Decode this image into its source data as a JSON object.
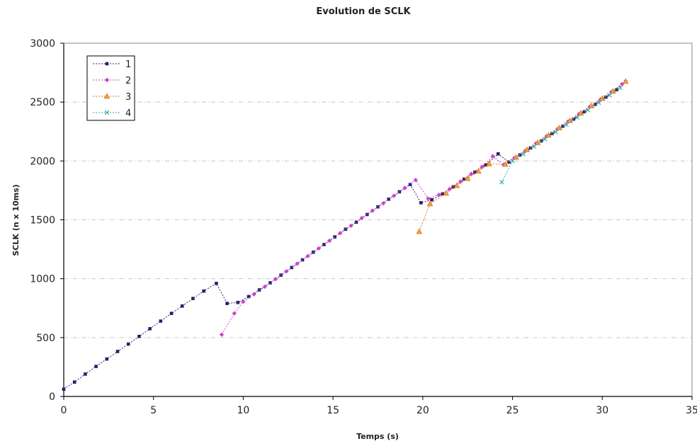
{
  "chart_data": {
    "type": "line",
    "title": "Evolution de SCLK",
    "xlabel": "Temps (s)",
    "ylabel": "SCLK (n x 10ms)",
    "xlim": [
      0,
      35
    ],
    "ylim": [
      0,
      3000
    ],
    "xticks": [
      0,
      5,
      10,
      15,
      20,
      25,
      30,
      35
    ],
    "yticks": [
      0,
      500,
      1000,
      1500,
      2000,
      2500,
      3000
    ],
    "grid": "horizontal dashed",
    "legend_position": "top-left",
    "series": [
      {
        "name": "1",
        "color": "#22226e",
        "marker": "square",
        "points": [
          [
            0,
            62
          ],
          [
            0.6,
            122
          ],
          [
            1.2,
            190
          ],
          [
            1.8,
            255
          ],
          [
            2.4,
            318
          ],
          [
            3.0,
            382
          ],
          [
            3.6,
            445
          ],
          [
            4.2,
            510
          ],
          [
            4.8,
            575
          ],
          [
            5.4,
            640
          ],
          [
            6.0,
            705
          ],
          [
            6.6,
            768
          ],
          [
            7.2,
            832
          ],
          [
            7.8,
            895
          ],
          [
            8.5,
            960
          ],
          [
            9.1,
            790
          ],
          [
            9.7,
            798
          ],
          [
            10.3,
            848
          ],
          [
            10.9,
            905
          ],
          [
            11.5,
            965
          ],
          [
            12.1,
            1030
          ],
          [
            12.7,
            1095
          ],
          [
            13.3,
            1160
          ],
          [
            13.9,
            1225
          ],
          [
            14.5,
            1290
          ],
          [
            15.1,
            1355
          ],
          [
            15.7,
            1420
          ],
          [
            16.3,
            1480
          ],
          [
            16.9,
            1545
          ],
          [
            17.5,
            1610
          ],
          [
            18.1,
            1675
          ],
          [
            18.7,
            1738
          ],
          [
            19.3,
            1800
          ],
          [
            19.9,
            1645
          ],
          [
            20.5,
            1670
          ],
          [
            21.1,
            1720
          ],
          [
            21.7,
            1780
          ],
          [
            22.3,
            1845
          ],
          [
            22.9,
            1905
          ],
          [
            23.5,
            1965
          ],
          [
            24.2,
            2060
          ],
          [
            24.8,
            1990
          ],
          [
            25.4,
            2050
          ],
          [
            26.0,
            2110
          ],
          [
            26.6,
            2170
          ],
          [
            27.2,
            2232
          ],
          [
            27.8,
            2295
          ],
          [
            28.4,
            2355
          ],
          [
            29.0,
            2418
          ],
          [
            29.6,
            2480
          ],
          [
            30.2,
            2542
          ],
          [
            30.8,
            2605
          ],
          [
            31.3,
            2672
          ]
        ]
      },
      {
        "name": "2",
        "color": "#cc44cc",
        "marker": "diamond",
        "points": [
          [
            8.8,
            525
          ],
          [
            9.5,
            705
          ],
          [
            10.0,
            805
          ],
          [
            10.6,
            868
          ],
          [
            11.2,
            932
          ],
          [
            11.8,
            997
          ],
          [
            12.4,
            1062
          ],
          [
            13.0,
            1127
          ],
          [
            13.6,
            1192
          ],
          [
            14.2,
            1257
          ],
          [
            14.8,
            1322
          ],
          [
            15.4,
            1387
          ],
          [
            16.0,
            1450
          ],
          [
            16.6,
            1515
          ],
          [
            17.2,
            1578
          ],
          [
            17.8,
            1640
          ],
          [
            18.4,
            1705
          ],
          [
            19.0,
            1770
          ],
          [
            19.6,
            1838
          ],
          [
            20.3,
            1680
          ],
          [
            20.9,
            1712
          ],
          [
            21.5,
            1762
          ],
          [
            22.1,
            1825
          ],
          [
            22.7,
            1890
          ],
          [
            23.3,
            1950
          ],
          [
            23.9,
            2040
          ],
          [
            24.5,
            1968
          ],
          [
            25.1,
            2025
          ],
          [
            25.7,
            2085
          ],
          [
            26.3,
            2148
          ],
          [
            26.9,
            2210
          ],
          [
            27.5,
            2270
          ],
          [
            28.1,
            2335
          ],
          [
            28.7,
            2398
          ],
          [
            29.3,
            2460
          ],
          [
            29.9,
            2522
          ],
          [
            30.5,
            2585
          ],
          [
            31.1,
            2652
          ]
        ]
      },
      {
        "name": "3",
        "color": "#e07800",
        "marker": "triangle",
        "points": [
          [
            19.8,
            1400
          ],
          [
            20.4,
            1635
          ],
          [
            21.3,
            1725
          ],
          [
            21.9,
            1790
          ],
          [
            22.5,
            1850
          ],
          [
            23.1,
            1912
          ],
          [
            23.7,
            1975
          ],
          [
            24.6,
            1970
          ],
          [
            25.2,
            2030
          ],
          [
            25.8,
            2095
          ],
          [
            26.4,
            2155
          ],
          [
            27.0,
            2218
          ],
          [
            27.6,
            2280
          ],
          [
            28.2,
            2342
          ],
          [
            28.8,
            2405
          ],
          [
            29.4,
            2468
          ],
          [
            30.0,
            2530
          ],
          [
            30.6,
            2592
          ],
          [
            31.3,
            2675
          ]
        ]
      },
      {
        "name": "4",
        "color": "#33aaaa",
        "marker": "x",
        "points": [
          [
            24.4,
            1820
          ],
          [
            25.0,
            2000
          ],
          [
            25.6,
            2058
          ],
          [
            26.2,
            2122
          ],
          [
            26.8,
            2185
          ],
          [
            27.4,
            2246
          ],
          [
            28.0,
            2308
          ],
          [
            28.6,
            2370
          ],
          [
            29.2,
            2432
          ],
          [
            29.8,
            2495
          ],
          [
            30.4,
            2558
          ],
          [
            31.0,
            2620
          ]
        ]
      }
    ]
  }
}
